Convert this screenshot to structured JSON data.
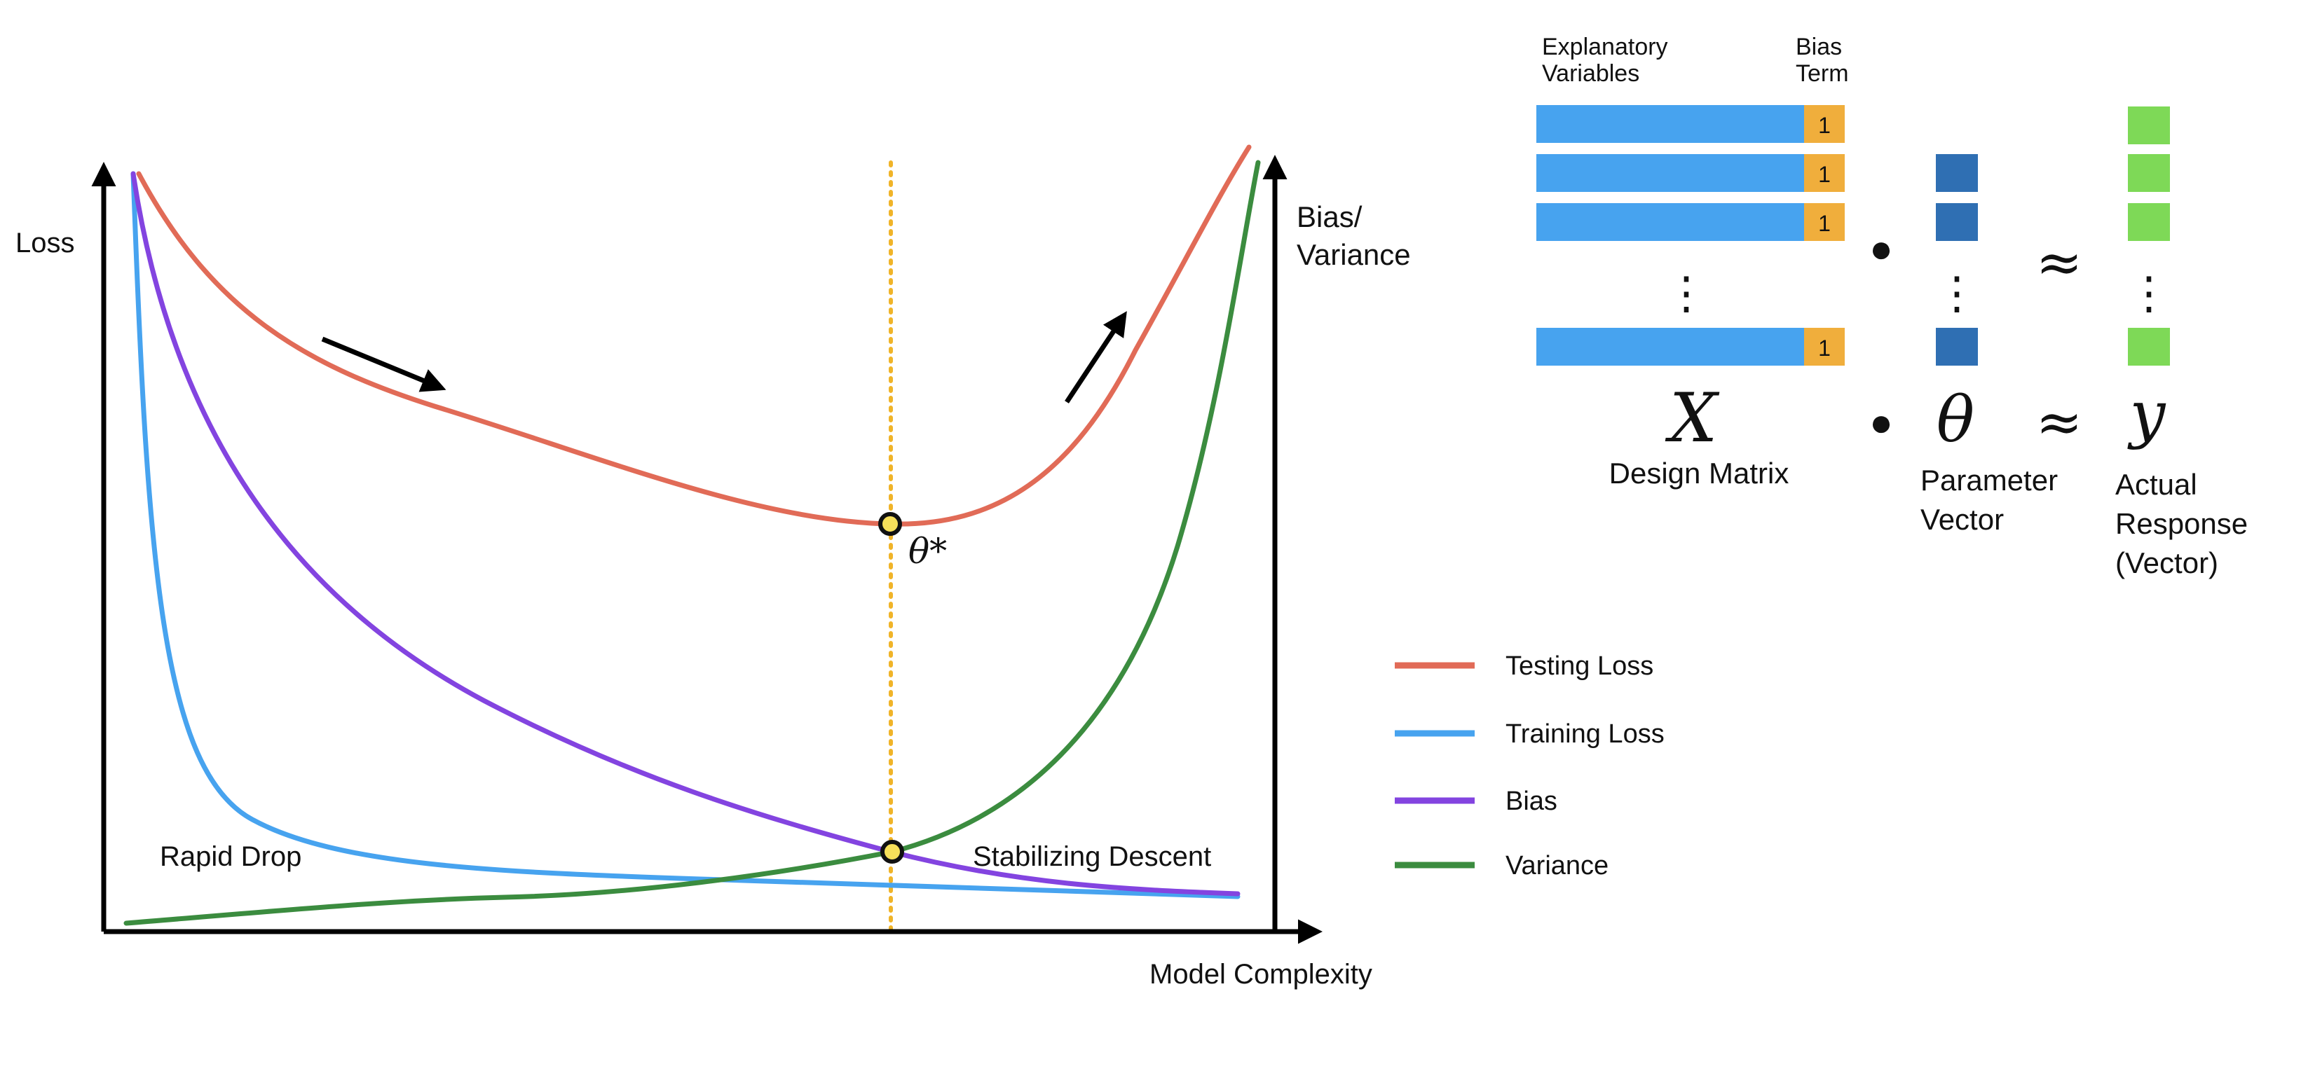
{
  "plot": {
    "y_label_left": "Loss",
    "y_label_right_line1": "Bias/",
    "y_label_right_line2": "Variance",
    "x_label": "Model Complexity",
    "annotation_left": "Rapid Drop",
    "annotation_right": "Stabilizing Descent",
    "optimum_label": "θ*"
  },
  "legend": [
    {
      "label": "Testing Loss",
      "color": "#e16b57"
    },
    {
      "label": "Training Loss",
      "color": "#47a3ef"
    },
    {
      "label": "Bias",
      "color": "#8344e0"
    },
    {
      "label": "Variance",
      "color": "#3b8c3f"
    }
  ],
  "colors": {
    "testing_loss": "#e16b57",
    "training_loss": "#47a3ef",
    "bias": "#8344e0",
    "variance": "#3b8c3f",
    "optimum_line": "#f0b429",
    "marker_fill": "#f7e05a",
    "matrix_blue": "#47a3ef",
    "bias_orange": "#f0ae3c",
    "theta_blue": "#2f6fb3",
    "response_green": "#7ed957"
  },
  "equation": {
    "header_explanatory_line1": "Explanatory",
    "header_explanatory_line2": "Variables",
    "header_bias_line1": "Bias",
    "header_bias_line2": "Term",
    "bias_cell": "1",
    "dot": "●",
    "vdots": "⋮",
    "approx": "≈",
    "symbol_X": "X",
    "symbol_theta": "θ",
    "symbol_y": "y",
    "label_X": "Design Matrix",
    "label_theta_line1": "Parameter",
    "label_theta_line2": "Vector",
    "label_y_line1": "Actual",
    "label_y_line2": "Response",
    "label_y_line3": "(Vector)"
  }
}
